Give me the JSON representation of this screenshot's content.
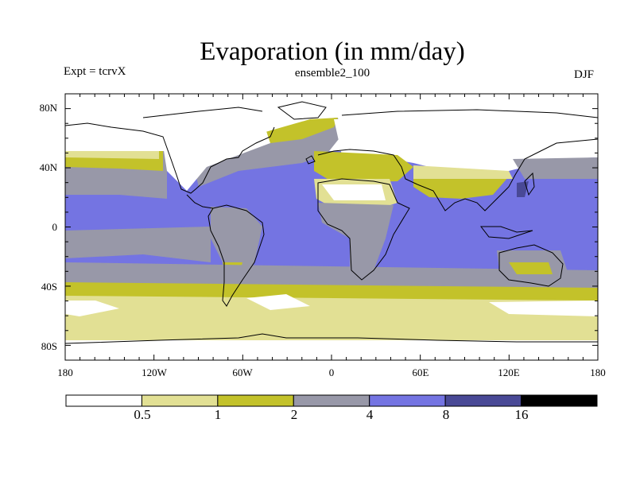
{
  "title": "Evaporation (in mm/day)",
  "subtitle_left": "Expt = tcrvX",
  "subtitle_center": "ensemble2_100",
  "subtitle_right": "DJF",
  "y_ticks": [
    "80N",
    "40N",
    "0",
    "40S",
    "80S"
  ],
  "x_ticks": [
    "180",
    "120W",
    "60W",
    "0",
    "60E",
    "120E",
    "180"
  ],
  "colorbar": {
    "levels": [
      "0.5",
      "1",
      "2",
      "4",
      "8",
      "16"
    ],
    "colors": [
      "#ffffff",
      "#e2e094",
      "#c3c22a",
      "#9898a8",
      "#7474e2",
      "#494996",
      "#000000"
    ]
  },
  "chart_data": {
    "type": "heatmap",
    "projection": "equirectangular",
    "variable": "Evaporation",
    "units": "mm/day",
    "season": "DJF",
    "lon_range": [
      -180,
      180
    ],
    "lat_range": [
      -90,
      90
    ],
    "contour_levels": [
      0.5,
      1,
      2,
      4,
      8,
      16
    ]
  }
}
